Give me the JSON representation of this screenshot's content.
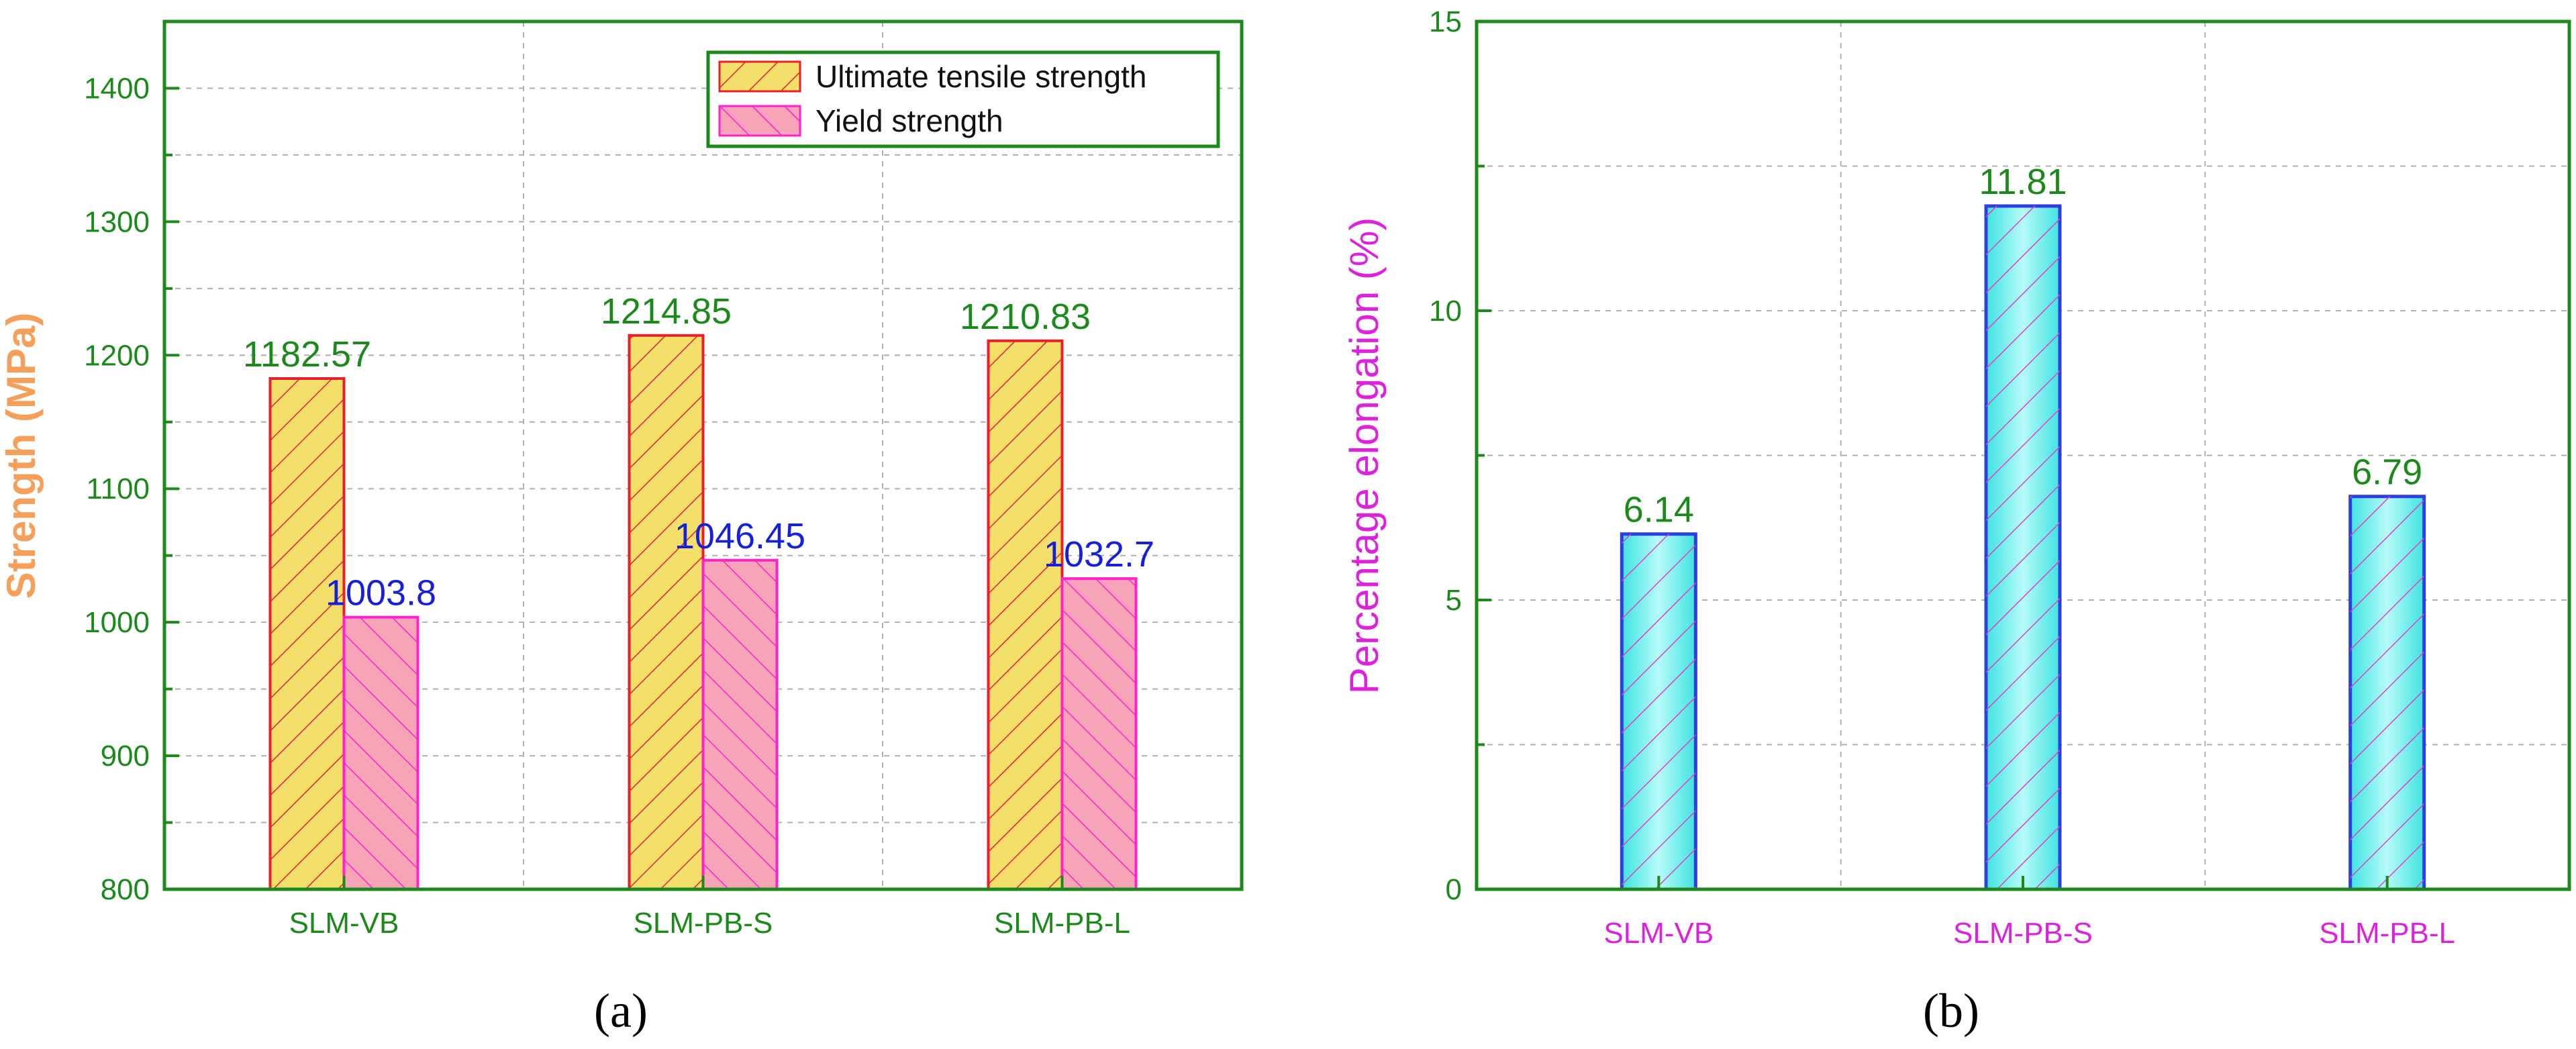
{
  "colors": {
    "axis_green": "#1b8a1b",
    "ylabel_orange": "#f4a05a",
    "ylabel_magenta": "#dd22dd",
    "xtick_magenta": "#dd22dd",
    "uts_fill": "#f3df6a",
    "uts_stroke": "#e8202a",
    "ys_fill": "#f7a3b8",
    "ys_stroke": "#ff22cc",
    "elong_fill": "#5ff0ee",
    "elong_stroke": "#2d3fe0",
    "elong_hatch": "#e040c8",
    "label_green": "#1b8a1b",
    "label_blue": "#1520d8"
  },
  "chart_data": [
    {
      "type": "bar",
      "panel_label": "(a)",
      "categories": [
        "SLM-VB",
        "SLM-PB-S",
        "SLM-PB-L"
      ],
      "ylabel": "Strength (MPa)",
      "xlabel": "",
      "ylim": [
        800,
        1450
      ],
      "yticks": [
        800,
        900,
        1000,
        1100,
        1200,
        1300,
        1400
      ],
      "grid": true,
      "legend_position": "top-right",
      "series": [
        {
          "name": "Ultimate tensile strength",
          "values": [
            1182.57,
            1214.85,
            1210.83
          ],
          "labels": [
            "1182.57",
            "1214.85",
            "1210.83"
          ]
        },
        {
          "name": "Yield strength",
          "values": [
            1003.8,
            1046.45,
            1032.7
          ],
          "labels": [
            "1003.8",
            "1046.45",
            "1032.7"
          ]
        }
      ]
    },
    {
      "type": "bar",
      "panel_label": "(b)",
      "categories": [
        "SLM-VB",
        "SLM-PB-S",
        "SLM-PB-L"
      ],
      "ylabel": "Percentage elongation (%)",
      "xlabel": "",
      "ylim": [
        0,
        15
      ],
      "yticks": [
        0,
        5,
        10,
        15
      ],
      "grid": true,
      "series": [
        {
          "values": [
            6.14,
            11.81,
            6.79
          ],
          "labels": [
            "6.14",
            "11.81",
            "6.79"
          ]
        }
      ]
    }
  ]
}
